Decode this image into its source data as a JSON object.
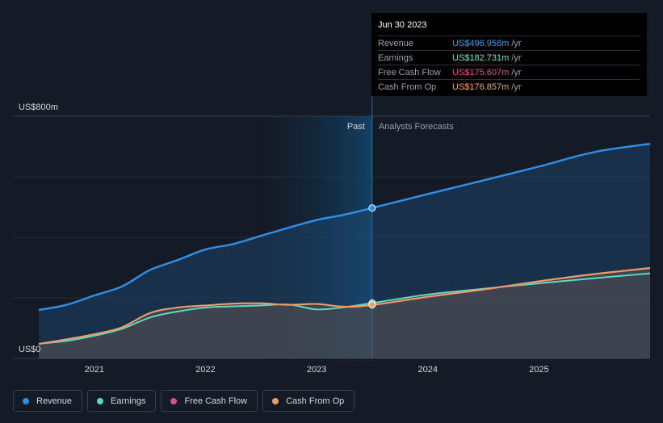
{
  "chart_data": {
    "type": "area",
    "y_top_label": "US$800m",
    "y_bottom_label": "US$0",
    "ylim": [
      0,
      800
    ],
    "xlim": [
      2020.5,
      2026.0
    ],
    "x_ticks": [
      {
        "value": 2021,
        "label": "2021"
      },
      {
        "value": 2022,
        "label": "2022"
      },
      {
        "value": 2023,
        "label": "2023"
      },
      {
        "value": 2024,
        "label": "2024"
      },
      {
        "value": 2025,
        "label": "2025"
      }
    ],
    "past_label": "Past",
    "forecast_label": "Analysts Forecasts",
    "divider_x": 2023.5,
    "past_shade_start": 2022.5,
    "tooltip": {
      "date": "Jun 30 2023",
      "rows": [
        {
          "label": "Revenue",
          "value": "US$496.958m",
          "unit": "/yr",
          "color": "#3d9be9"
        },
        {
          "label": "Earnings",
          "value": "US$182.731m",
          "unit": "/yr",
          "color": "#6fe3c8"
        },
        {
          "label": "Free Cash Flow",
          "value": "US$175.607m",
          "unit": "/yr",
          "color": "#e0508d"
        },
        {
          "label": "Cash From Op",
          "value": "US$176.857m",
          "unit": "/yr",
          "color": "#f1a868"
        }
      ]
    },
    "series": [
      {
        "name": "Revenue",
        "color": "#2f8de4",
        "points": [
          [
            2020.5,
            160
          ],
          [
            2020.75,
            177
          ],
          [
            2021.0,
            208
          ],
          [
            2021.25,
            238
          ],
          [
            2021.5,
            292
          ],
          [
            2021.75,
            325
          ],
          [
            2022.0,
            360
          ],
          [
            2022.25,
            378
          ],
          [
            2022.5,
            405
          ],
          [
            2022.75,
            432
          ],
          [
            2023.0,
            457
          ],
          [
            2023.25,
            475
          ],
          [
            2023.5,
            497
          ],
          [
            2024.0,
            543
          ],
          [
            2024.5,
            588
          ],
          [
            2025.0,
            634
          ],
          [
            2025.5,
            682
          ],
          [
            2026.0,
            709
          ]
        ]
      },
      {
        "name": "Earnings",
        "color": "#5fd8c0",
        "points": [
          [
            2020.5,
            48
          ],
          [
            2020.75,
            58
          ],
          [
            2021.0,
            75
          ],
          [
            2021.25,
            98
          ],
          [
            2021.5,
            135
          ],
          [
            2021.75,
            155
          ],
          [
            2022.0,
            168
          ],
          [
            2022.25,
            172
          ],
          [
            2022.5,
            175
          ],
          [
            2022.75,
            178
          ],
          [
            2023.0,
            162
          ],
          [
            2023.25,
            169
          ],
          [
            2023.5,
            183
          ],
          [
            2024.0,
            211
          ],
          [
            2024.5,
            230
          ],
          [
            2025.0,
            248
          ],
          [
            2025.5,
            265
          ],
          [
            2026.0,
            281
          ]
        ]
      },
      {
        "name": "Free Cash Flow",
        "color": "#e0508d",
        "points": [
          [
            2020.5,
            48
          ],
          [
            2020.75,
            63
          ],
          [
            2021.0,
            80
          ],
          [
            2021.25,
            103
          ],
          [
            2021.5,
            150
          ],
          [
            2021.75,
            168
          ],
          [
            2022.0,
            175
          ],
          [
            2022.25,
            181
          ],
          [
            2022.5,
            182
          ],
          [
            2022.75,
            177
          ],
          [
            2023.0,
            180
          ],
          [
            2023.25,
            170
          ],
          [
            2023.5,
            176
          ],
          [
            2024.0,
            203
          ],
          [
            2024.5,
            227
          ],
          [
            2025.0,
            254
          ],
          [
            2025.5,
            278
          ],
          [
            2026.0,
            298
          ]
        ]
      },
      {
        "name": "Cash From Op",
        "color": "#e9a060",
        "points": [
          [
            2020.5,
            48
          ],
          [
            2020.75,
            63
          ],
          [
            2021.0,
            80
          ],
          [
            2021.25,
            103
          ],
          [
            2021.5,
            150
          ],
          [
            2021.75,
            168
          ],
          [
            2022.0,
            175
          ],
          [
            2022.25,
            181
          ],
          [
            2022.5,
            182
          ],
          [
            2022.75,
            177
          ],
          [
            2023.0,
            180
          ],
          [
            2023.25,
            171
          ],
          [
            2023.5,
            177
          ],
          [
            2024.0,
            204
          ],
          [
            2024.5,
            228
          ],
          [
            2025.0,
            255
          ],
          [
            2025.5,
            279
          ],
          [
            2026.0,
            299
          ]
        ]
      }
    ],
    "markers": [
      {
        "series": "Revenue",
        "x": 2023.5,
        "y": 497,
        "color": "#2f8de4"
      },
      {
        "series": "Earnings",
        "x": 2023.5,
        "y": 183,
        "color": "#5fd8c0"
      },
      {
        "series": "Cash From Op",
        "x": 2023.5,
        "y": 177,
        "color": "#e9a060"
      }
    ]
  },
  "legend": [
    {
      "label": "Revenue",
      "color": "#2f8de4"
    },
    {
      "label": "Earnings",
      "color": "#5fd8c0"
    },
    {
      "label": "Free Cash Flow",
      "color": "#d64f8f"
    },
    {
      "label": "Cash From Op",
      "color": "#e9a060"
    }
  ]
}
